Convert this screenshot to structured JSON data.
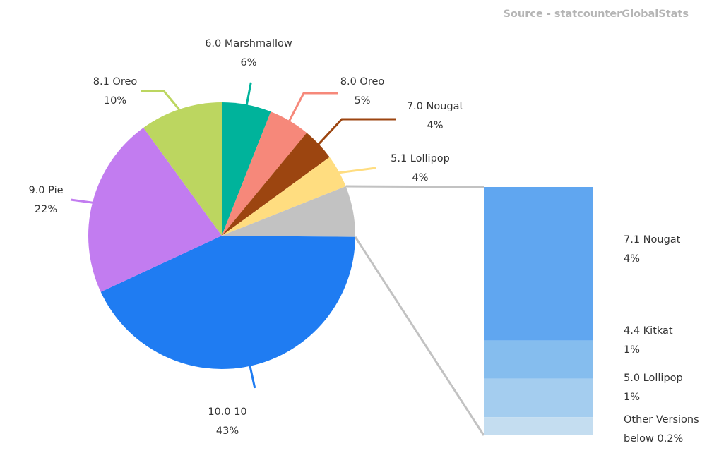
{
  "source": "Source - statcounterGlobalStats",
  "chart_data": {
    "type": "pie",
    "title": "",
    "slices": [
      {
        "label": "6.0 Marshmallow",
        "value_label": "6%",
        "value": 6,
        "color": "#00b39b"
      },
      {
        "label": "8.0 Oreo",
        "value_label": "5%",
        "value": 5,
        "color": "#f6887a"
      },
      {
        "label": "7.0 Nougat",
        "value_label": "4%",
        "value": 4,
        "color": "#9c4510"
      },
      {
        "label": "5.1 Lollipop",
        "value_label": "4%",
        "value": 4,
        "color": "#ffdd80"
      },
      {
        "label": "",
        "value_label": "",
        "value": 6.2,
        "color": "#c2c2c2"
      },
      {
        "label": "10.0 10",
        "value_label": "43%",
        "value": 43,
        "color": "#1f7cf2"
      },
      {
        "label": "9.0 Pie",
        "value_label": "22%",
        "value": 22,
        "color": "#c27cf0"
      },
      {
        "label": "8.1 Oreo",
        "value_label": "10%",
        "value": 10,
        "color": "#bcd660"
      }
    ],
    "breakdown": {
      "type": "stacked-bar",
      "items": [
        {
          "label": "7.1 Nougat",
          "value_label": "4%",
          "value": 4,
          "color": "#60a6f0"
        },
        {
          "label": "4.4 Kitkat",
          "value_label": "1%",
          "value": 1,
          "color": "#85bdee"
        },
        {
          "label": "5.0 Lollipop",
          "value_label": "1%",
          "value": 1,
          "color": "#a4cdef"
        },
        {
          "label": "Other Versions",
          "value_label": "below 0.2%",
          "value": 0.2,
          "color": "#c4ddf0"
        }
      ]
    }
  }
}
